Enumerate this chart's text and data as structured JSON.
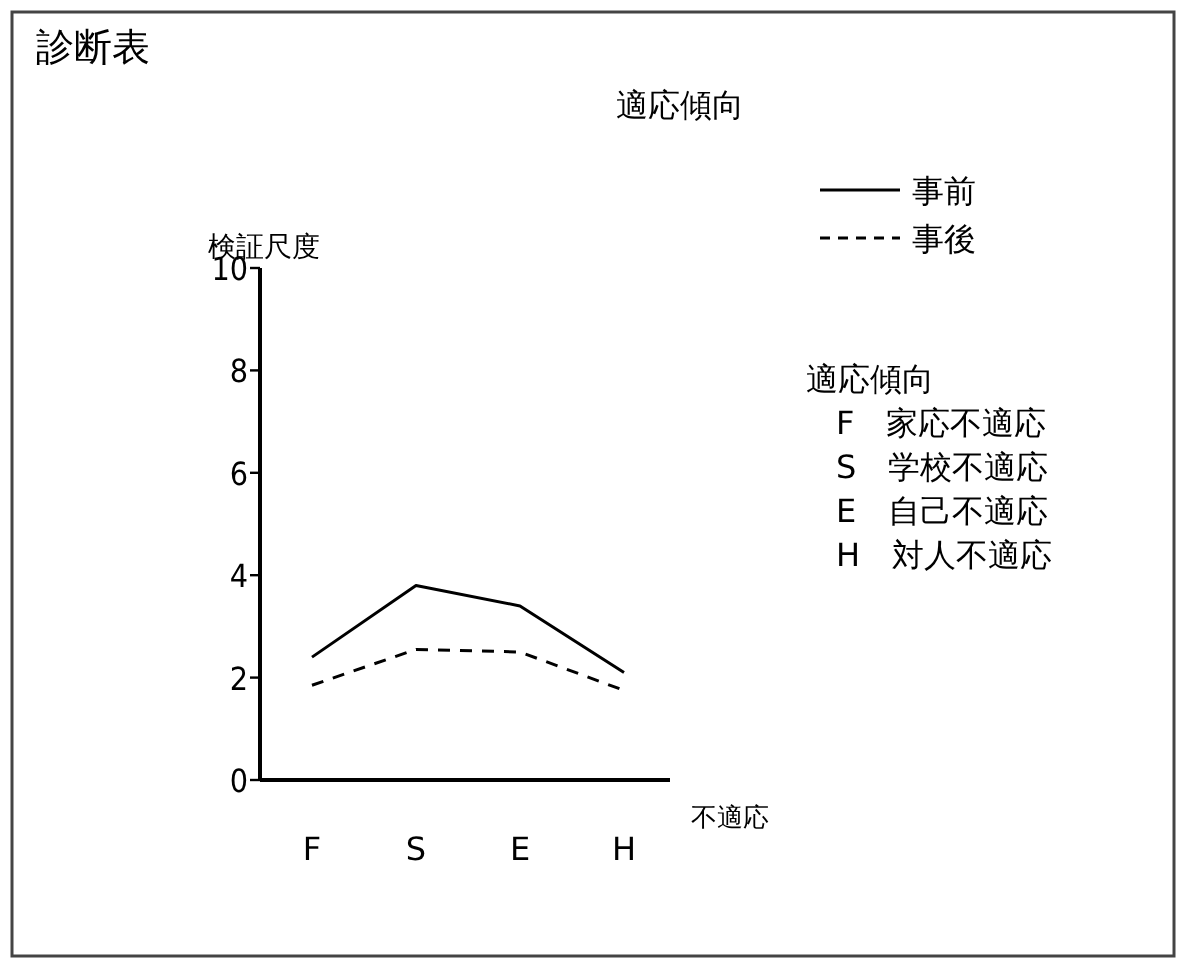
{
  "chart_data": {
    "type": "line",
    "title": "適応傾向",
    "subtitle": "診断表",
    "xlabel": "不適応",
    "ylabel": "検証尺度",
    "categories": [
      "F",
      "S",
      "E",
      "H"
    ],
    "series": [
      {
        "name": "事前",
        "color": "#000000",
        "line_style": "solid",
        "values": [
          2.4,
          3.8,
          3.4,
          2.1
        ]
      },
      {
        "name": "事後",
        "color": "#000000",
        "line_style": "dashed",
        "values": [
          1.85,
          2.55,
          2.5,
          1.75
        ]
      }
    ],
    "ylim": [
      0,
      10
    ],
    "yticks": [
      0,
      2,
      4,
      6,
      8,
      10
    ],
    "grid": false,
    "legend": "top right",
    "marker": "none",
    "annotations": [
      "適応傾向",
      "F　家応不適応",
      "S　学校不適応",
      "E　自己不適応",
      "H　対人不適応"
    ]
  }
}
